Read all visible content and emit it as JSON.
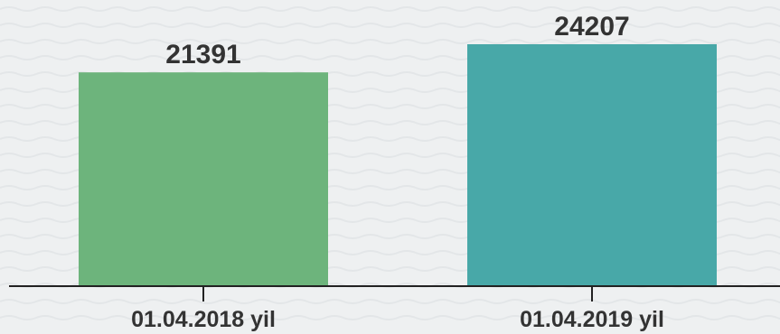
{
  "chart_data": {
    "type": "bar",
    "title": "",
    "xlabel": "",
    "ylabel": "",
    "categories": [
      "01.04.2018 yil",
      "01.04.2019 yil"
    ],
    "values": [
      21391,
      24207
    ],
    "value_labels": [
      "21391",
      "24207"
    ],
    "colors": [
      "#6db47c",
      "#48a8a8"
    ],
    "ylim": [
      0,
      24207
    ],
    "grid": false,
    "legend": "none"
  },
  "colors": {
    "background": "#eef0f1",
    "wave_pattern": "#e3e6e8",
    "axis": "#222222",
    "text": "#333333"
  }
}
